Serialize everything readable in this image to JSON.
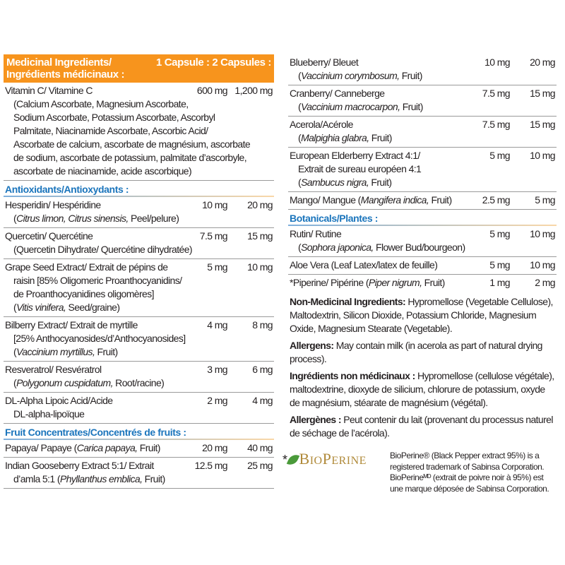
{
  "header": {
    "title_en": "Medicinal Ingredients/",
    "title_fr": "Ingrédients médicinaux :",
    "doses": "1 Capsule : 2 Capsules :"
  },
  "left_rows_top": [
    {
      "lines": [
        [
          "Vitamin C/ Vitamine C"
        ],
        [
          "(Calcium Ascorbate, Magnesium Ascorbate,"
        ],
        [
          "Sodium Ascorbate, Potassium Ascorbate, Ascorbyl"
        ],
        [
          "Palmitate, Niacinamide Ascorbate, Ascorbic Acid/"
        ],
        [
          "Ascorbate de calcium, ascorbate de magnésium, ascorbate"
        ],
        [
          "de sodium, ascorbate de potassium, palmitate d’ascorbyle,"
        ],
        [
          "ascorbate de niacinamide, acide ascorbique)"
        ]
      ],
      "d1": "600 mg",
      "d2": "1,200 mg"
    }
  ],
  "antioxidants": {
    "title": "Antioxidants/Antioxydants :",
    "rows": [
      {
        "lines": [
          [
            "Hesperidin/ Hespéridine"
          ],
          [
            "(",
            {
              "i": "Citrus limon, Citrus sinensis,"
            },
            " Peel/pelure)"
          ]
        ],
        "d1": "10 mg",
        "d2": "20 mg"
      },
      {
        "lines": [
          [
            "Quercetin/ Quercétine"
          ],
          [
            "(Quercetin Dihydrate/ Quercétine dihydratée)"
          ]
        ],
        "d1": "7.5 mg",
        "d2": "15 mg"
      },
      {
        "lines": [
          [
            "Grape Seed Extract/ Extrait de pépins de"
          ],
          [
            "raisin [85% Oligomeric Proanthocyanidins/"
          ],
          [
            "de Proanthocyanidines oligomères]"
          ],
          [
            "(",
            {
              "i": "Vitis vinifera,"
            },
            " Seed/graine)"
          ]
        ],
        "d1": "5 mg",
        "d2": "10 mg"
      },
      {
        "lines": [
          [
            "Bilberry Extract/ Extrait de myrtille"
          ],
          [
            "[25% Anthocyanosides/d’Anthocyanosides]"
          ],
          [
            "(",
            {
              "i": "Vaccinium myrtillus,"
            },
            " Fruit)"
          ]
        ],
        "d1": "4 mg",
        "d2": "8 mg"
      },
      {
        "lines": [
          [
            "Resveratrol/ Resvératrol"
          ],
          [
            "(",
            {
              "i": "Polygonum cuspidatum,"
            },
            " Root/racine)"
          ]
        ],
        "d1": "3 mg",
        "d2": "6 mg"
      },
      {
        "lines": [
          [
            "DL-Alpha Lipoic Acid/Acide"
          ],
          [
            "DL-alpha-lipoïque"
          ]
        ],
        "d1": "2 mg",
        "d2": "4 mg"
      }
    ]
  },
  "fruit": {
    "title": "Fruit Concentrates/Concentrés de fruits :",
    "rows": [
      {
        "lines": [
          [
            "Papaya/ Papaye (",
            {
              "i": "Carica papaya,"
            },
            " Fruit)"
          ]
        ],
        "d1": "20 mg",
        "d2": "40 mg"
      },
      {
        "lines": [
          [
            "Indian Gooseberry Extract 5:1/ Extrait"
          ],
          [
            "d’amla 5:1 (",
            {
              "i": "Phyllanthus emblica,"
            },
            " Fruit)"
          ]
        ],
        "d1": "12.5 mg",
        "d2": "25 mg"
      }
    ]
  },
  "right_rows_top": [
    {
      "lines": [
        [
          "Blueberry/ Bleuet"
        ],
        [
          "(",
          {
            "i": "Vaccinium corymbosum,"
          },
          " Fruit)"
        ]
      ],
      "d1": "10 mg",
      "d2": "20 mg"
    },
    {
      "lines": [
        [
          "Cranberry/ Canneberge"
        ],
        [
          "(",
          {
            "i": "Vaccinium macrocarpon,"
          },
          " Fruit)"
        ]
      ],
      "d1": "7.5 mg",
      "d2": "15 mg"
    },
    {
      "lines": [
        [
          "Acerola/Acérole"
        ],
        [
          "(",
          {
            "i": "Malpighia glabra,"
          },
          " Fruit)"
        ]
      ],
      "d1": "7.5 mg",
      "d2": "15 mg"
    },
    {
      "lines": [
        [
          "European Elderberry Extract 4:1/"
        ],
        [
          "Extrait de sureau européen 4:1"
        ],
        [
          "(",
          {
            "i": "Sambucus nigra,"
          },
          " Fruit)"
        ]
      ],
      "d1": "5 mg",
      "d2": "10 mg"
    },
    {
      "lines": [
        [
          "Mango/ Mangue (",
          {
            "i": "Mangifera indica,"
          },
          " Fruit)"
        ]
      ],
      "d1": "2.5 mg",
      "d2": "5 mg"
    }
  ],
  "botanicals": {
    "title": "Botanicals/Plantes :",
    "rows": [
      {
        "lines": [
          [
            "Rutin/ Rutine"
          ],
          [
            "(",
            {
              "i": "Sophora japonica,"
            },
            " Flower Bud/bourgeon)"
          ]
        ],
        "d1": "5 mg",
        "d2": "10 mg"
      },
      {
        "lines": [
          [
            "Aloe Vera (Leaf Latex/latex de feuille)"
          ]
        ],
        "d1": "5 mg",
        "d2": "10 mg"
      },
      {
        "lines": [
          [
            "*Piperine/ Pipérine (",
            {
              "i": "Piper nigrum,"
            },
            " Fruit)"
          ]
        ],
        "d1": "1 mg",
        "d2": "2 mg"
      }
    ]
  },
  "paragraphs": [
    {
      "label": "Non-Medicinal Ingredients:",
      "text": " Hypromellose (Vegetable Cellulose), Maltodextrin, Silicon Dioxide, Potassium Chloride, Magnesium Oxide, Magnesium Stearate (Vegetable)."
    },
    {
      "label": "Allergens:",
      "text": " May contain milk (in acerola as part of natural drying process)."
    },
    {
      "label": "Ingrédients non médicinaux :",
      "text": " Hypromellose (cellulose végétale), maltodextrine, dioxyde de silicium, chlorure de potassium, oxyde de magnésium, stéarate de magnésium (végétal)."
    },
    {
      "label": "Allergènes :",
      "text": " Peut contenir du lait (provenant du processus naturel de séchage de l’acérola)."
    }
  ],
  "bioperine": {
    "logo_text": "BioPerine",
    "star": "*",
    "note_lines": [
      "BioPerine® (Black Pepper extract 95%) is a",
      "registered trademark of Sabinsa Corporation.",
      "BioPerineᴹᴰ (extrait de poivre noir à 95%) est",
      "une marque déposée de Sabinsa Corporation."
    ]
  },
  "colors": {
    "header_bg": "#f7941d",
    "section_title": "#1b75bc",
    "logo_gold": "#b08a3a",
    "leaf_green": "#4a9a3a"
  }
}
